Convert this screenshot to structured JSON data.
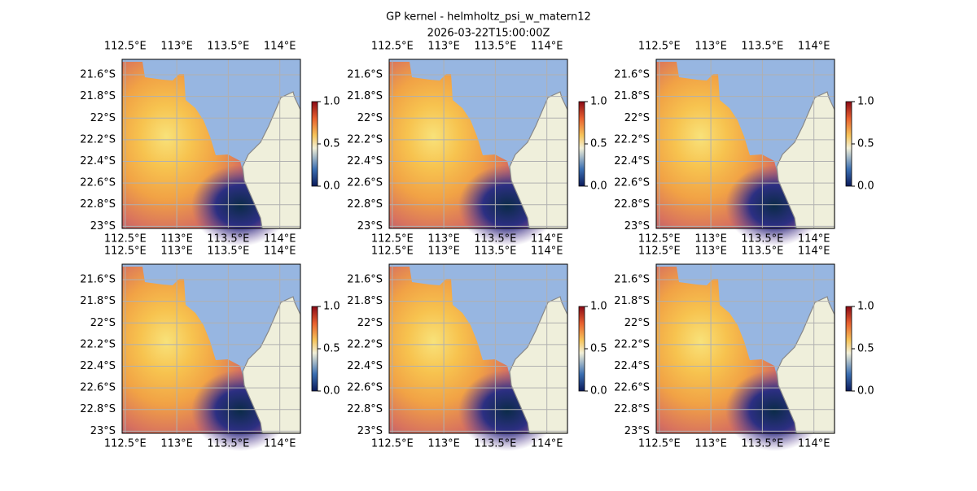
{
  "title": [
    "GP kernel - helmholtz_psi_w_matern12",
    "2026-03-22T15:00:00Z"
  ],
  "lon_ticks": [
    {
      "value": 112.5,
      "label": "112.5°E"
    },
    {
      "value": 113,
      "label": "113°E"
    },
    {
      "value": 113.5,
      "label": "113.5°E"
    },
    {
      "value": 114,
      "label": "114°E"
    }
  ],
  "lat_ticks": [
    {
      "value": -21.6,
      "label": "21.6°S"
    },
    {
      "value": -21.8,
      "label": "21.8°S"
    },
    {
      "value": -22,
      "label": "22°S"
    },
    {
      "value": -22.2,
      "label": "22.2°S"
    },
    {
      "value": -22.4,
      "label": "22.4°S"
    },
    {
      "value": -22.6,
      "label": "22.6°S"
    },
    {
      "value": -22.8,
      "label": "22.8°S"
    },
    {
      "value": -23,
      "label": "23°S"
    }
  ],
  "lon_lim": [
    112.47,
    114.2
  ],
  "lat_lim": [
    -21.457,
    -23.02
  ],
  "colorbar": {
    "lim": [
      0,
      1
    ],
    "ticks": [
      {
        "value": 0,
        "label": "0.0"
      },
      {
        "value": 0.5,
        "label": "0.5"
      },
      {
        "value": 1,
        "label": "1.0"
      }
    ]
  }
}
